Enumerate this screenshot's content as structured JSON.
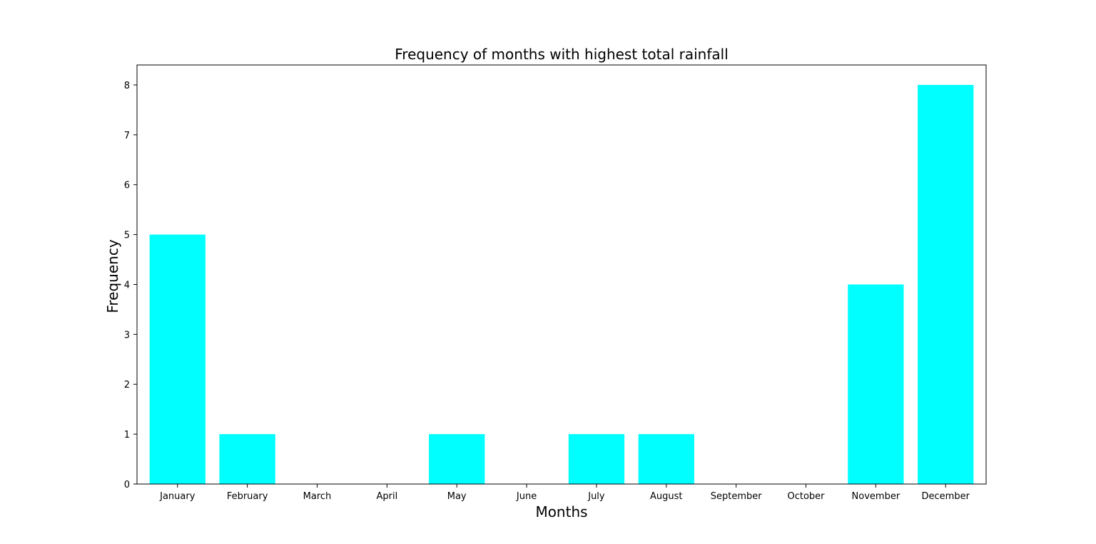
{
  "chart_data": {
    "type": "bar",
    "title": "Frequency of months with highest total rainfall",
    "xlabel": "Months",
    "ylabel": "Frequency",
    "categories": [
      "January",
      "February",
      "March",
      "April",
      "May",
      "June",
      "July",
      "August",
      "September",
      "October",
      "November",
      "December"
    ],
    "values": [
      5,
      1,
      0,
      0,
      1,
      0,
      1,
      1,
      0,
      0,
      4,
      8
    ],
    "ylim": [
      0,
      8.4
    ],
    "yticks": [
      0,
      1,
      2,
      3,
      4,
      5,
      6,
      7,
      8
    ],
    "bar_color": "#00ffff",
    "grid": false
  }
}
